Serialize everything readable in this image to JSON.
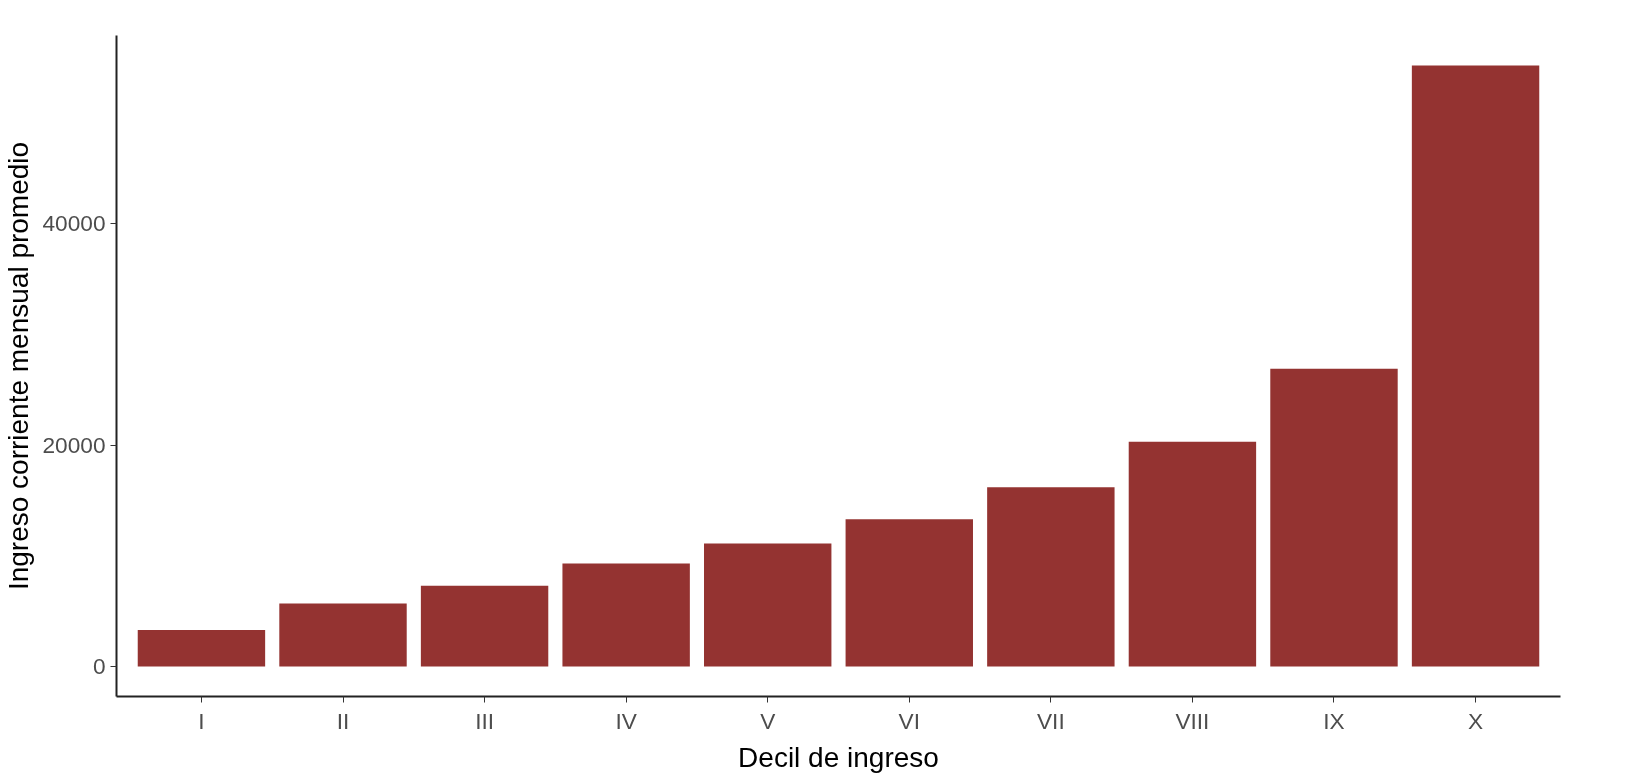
{
  "chart_data": {
    "type": "bar",
    "xlabel": "Decil de ingreso",
    "ylabel": "Ingreso corriente mensual promedio",
    "categories": [
      "I",
      "II",
      "III",
      "IV",
      "V",
      "VI",
      "VII",
      "VIII",
      "IX",
      "X"
    ],
    "values": [
      3300,
      5700,
      7300,
      9300,
      11100,
      13300,
      16200,
      20300,
      26900,
      54300
    ],
    "color": "#943331",
    "ylim": [
      -2715,
      57015
    ],
    "yticks": [
      0,
      20000,
      40000
    ],
    "grid": false
  }
}
